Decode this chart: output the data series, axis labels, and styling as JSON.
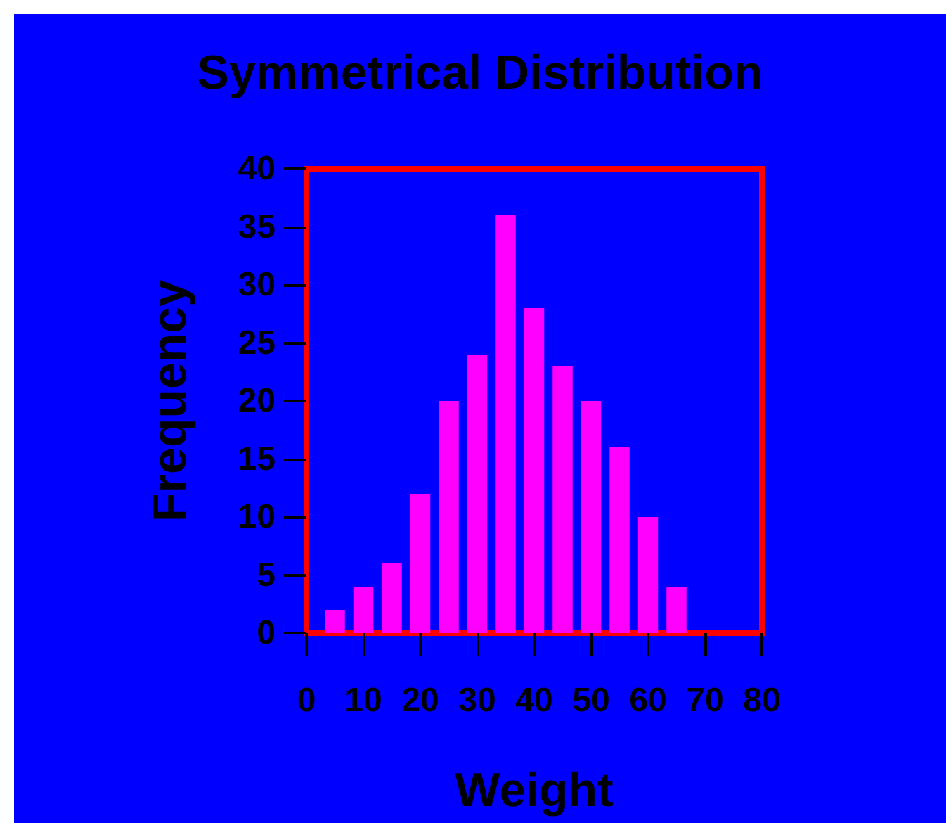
{
  "chart_data": {
    "type": "histogram",
    "title": "Symmetrical Distribution",
    "xlabel": "Weight",
    "ylabel": "Frequency",
    "bins": [
      2.5,
      7.5,
      12.5,
      17.5,
      22.5,
      27.5,
      32.5,
      37.5,
      42.5,
      47.5,
      52.5,
      57.5,
      62.5,
      67.5
    ],
    "values": [
      2,
      4,
      6,
      12,
      20,
      24,
      36,
      28,
      23,
      20,
      16,
      10,
      4
    ],
    "color": "#ff00ff",
    "xlim": [
      0,
      80
    ],
    "xticks": [
      0,
      10,
      20,
      30,
      40,
      50,
      60,
      70,
      80
    ],
    "ylim": [
      0,
      40
    ],
    "yticks": [
      0,
      5,
      10,
      15,
      20,
      25,
      30,
      35,
      40
    ],
    "grid": false
  }
}
